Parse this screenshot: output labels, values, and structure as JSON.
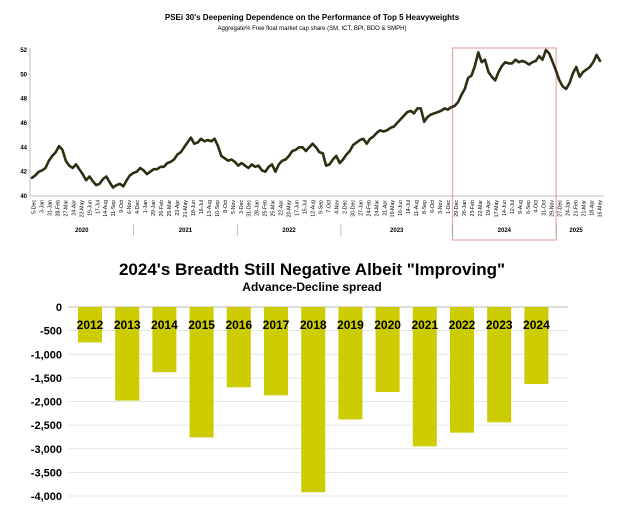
{
  "chart_data": [
    {
      "type": "line",
      "title": "PSEi 30's Deepening Dependence on the Performance of Top 5 Heavyweights",
      "subtitle": "Aggregate%   Free float market cap share (SM, ICT, BPI, BDO & SMPH)",
      "ylim": [
        40,
        52
      ],
      "yticks": [
        40,
        42,
        44,
        46,
        48,
        50,
        52
      ],
      "xticks": [
        "5-Dec",
        "3-Jan",
        "31-Jan",
        "28-Feb",
        "27-Mar",
        "24-Apr",
        "22-May",
        "19-Jun",
        "17-Jul",
        "14-Aug",
        "11-Sep",
        "9-Oct",
        "6-Nov",
        "4-Dec",
        "1-Jan",
        "29-Jan",
        "26-Feb",
        "25-Mar",
        "23-Apr",
        "21-May",
        "18-Jun",
        "16-Jul",
        "13-Aug",
        "10-Sep",
        "8-Oct",
        "5-Nov",
        "3-Dec",
        "31-Dec",
        "28-Jan",
        "25-Feb",
        "25-Mar",
        "22-Apr",
        "20-May",
        "17-Jun",
        "15-Jul",
        "12-Aug",
        "9-Sep",
        "7-Oct",
        "4-Nov",
        "2-Dec",
        "30-Dec",
        "27-Jan",
        "24-Feb",
        "24-Mar",
        "21-Apr",
        "19-May",
        "16-Jun",
        "14-Jul",
        "11-Aug",
        "8-Sep",
        "6-Oct",
        "3-Nov",
        "1-Dec",
        "29-Dec",
        "26-Jan",
        "23-Feb",
        "22-Mar",
        "19-Apr",
        "17-May",
        "14-Jun",
        "12-Jul",
        "9-Aug",
        "6-Sep",
        "4-Oct",
        "31-Oct",
        "29-Nov",
        "27-Dec",
        "24-Jan",
        "21-Feb",
        "21-Mar",
        "18-Apr",
        "16-May"
      ],
      "year_groups": [
        {
          "label": "2020",
          "count": 13
        },
        {
          "label": "2021",
          "count": 13
        },
        {
          "label": "2022",
          "count": 13
        },
        {
          "label": "2023",
          "count": 14
        },
        {
          "label": "2024",
          "count": 13
        },
        {
          "label": "2025",
          "count": 5
        }
      ],
      "highlight_years": [
        "2024"
      ],
      "series": [
        {
          "values": [
            41.5,
            41.7,
            42.0,
            42.1,
            42.3,
            42.9,
            43.3,
            43.6,
            44.1,
            43.8,
            42.9,
            42.5,
            42.3,
            42.6,
            42.2,
            41.8,
            41.3,
            41.6,
            41.2,
            40.9,
            41.0,
            41.4,
            41.6,
            41.1,
            40.7,
            40.9,
            41.0,
            40.8,
            41.3,
            41.7,
            41.9,
            42.0,
            42.3,
            42.1,
            41.8,
            42.0,
            42.2,
            42.2,
            42.4,
            42.4,
            42.7,
            42.8,
            43.0,
            43.4,
            43.6,
            44.0,
            44.4,
            44.8,
            44.3,
            44.4,
            44.7,
            44.5,
            44.6,
            44.5,
            44.7,
            44.1,
            43.3,
            43.1,
            42.9,
            43.0,
            42.8,
            42.5,
            42.7,
            42.5,
            42.3,
            42.6,
            42.4,
            42.5,
            42.1,
            42.0,
            42.4,
            42.6,
            42.0,
            42.6,
            42.9,
            43.0,
            43.3,
            43.7,
            43.8,
            44.0,
            44.0,
            43.7,
            44.0,
            44.3,
            44.0,
            43.6,
            43.5,
            42.5,
            42.6,
            43.0,
            43.3,
            42.7,
            43.0,
            43.4,
            43.7,
            44.2,
            44.4,
            44.6,
            44.7,
            44.3,
            44.7,
            44.9,
            45.2,
            45.4,
            45.3,
            45.4,
            45.6,
            45.7,
            46.0,
            46.3,
            46.6,
            46.9,
            47.0,
            46.8,
            47.2,
            47.2,
            46.1,
            46.5,
            46.7,
            46.8,
            46.9,
            47.0,
            47.2,
            47.1,
            47.3,
            47.4,
            47.7,
            48.3,
            48.8,
            49.7,
            49.9,
            50.7,
            51.8,
            51.0,
            51.2,
            50.2,
            49.8,
            49.5,
            50.2,
            50.7,
            51.0,
            50.9,
            50.9,
            51.2,
            51.0,
            51.1,
            51.0,
            50.8,
            51.0,
            51.1,
            51.5,
            51.2,
            52.0,
            51.7,
            51.0,
            50.3,
            49.5,
            49.0,
            48.8,
            49.3,
            50.1,
            50.6,
            49.8,
            50.2,
            50.4,
            50.6,
            51.0,
            51.6,
            51.1
          ]
        }
      ]
    },
    {
      "type": "bar",
      "title": "2024's Breadth Still Negative Albeit \"Improving\"",
      "subtitle": "Advance-Decline spread",
      "categories": [
        "2012",
        "2013",
        "2014",
        "2015",
        "2016",
        "2017",
        "2018",
        "2019",
        "2020",
        "2021",
        "2022",
        "2023",
        "2024"
      ],
      "values": [
        -750,
        -1980,
        -1380,
        -2760,
        -1700,
        -1870,
        -3920,
        -2380,
        -1800,
        -2950,
        -2660,
        -2440,
        -1630
      ],
      "ylim": [
        -4000,
        0
      ],
      "yticks": [
        0,
        -500,
        -1000,
        -1500,
        -2000,
        -2500,
        -3000,
        -3500,
        -4000
      ],
      "ytick_labels": [
        "0",
        "-500",
        "-1,000",
        "-1,500",
        "-2,000",
        "-2,500",
        "-3,000",
        "-3,500",
        "-4,000"
      ],
      "colors": {
        "bar": "#cccc00",
        "line": "#2e2e12",
        "highlight": "#e8a8a8"
      }
    }
  ]
}
